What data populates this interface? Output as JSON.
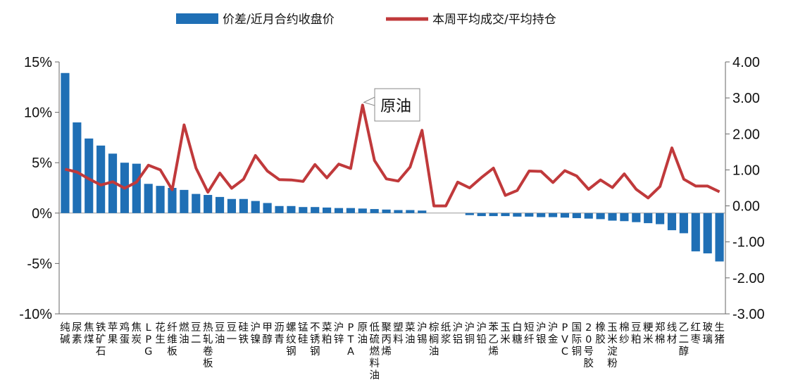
{
  "chart_data": {
    "type": "bar+line",
    "title": "",
    "colors": {
      "bar": "#1f6fb5",
      "line": "#c0393b"
    },
    "categories": [
      "纯碱",
      "尿素",
      "焦煤",
      "铁矿石",
      "苹果",
      "鸡蛋",
      "焦炭",
      "LPG",
      "花生",
      "纤维板",
      "燃油",
      "豆二",
      "热轧卷板",
      "豆油",
      "豆一",
      "硅铁",
      "沪镍",
      "甲醇",
      "沥青",
      "螺纹钢",
      "锰硅",
      "不锈钢",
      "菜粕",
      "沪锌",
      "PTA",
      "原油",
      "低硫燃料油",
      "聚丙烯",
      "塑料",
      "菜油",
      "沪锡",
      "棕榈油",
      "纸浆",
      "沪铝",
      "沪铜",
      "沪铅",
      "苯乙烯",
      "玉米",
      "白糖",
      "短纤",
      "沪银",
      "沪金",
      "PVC",
      "国际铜",
      "20号胶",
      "橡胶",
      "玉米淀粉",
      "棉纱",
      "豆粕",
      "粳米",
      "郑棉",
      "线材",
      "乙二醇",
      "红枣",
      "玻璃",
      "生猪"
    ],
    "series": [
      {
        "name": "价差/近月合约收盘价",
        "axis": "left",
        "unit": "%",
        "values": [
          13.9,
          9.0,
          7.4,
          6.7,
          5.9,
          5.0,
          4.9,
          2.9,
          2.7,
          2.5,
          2.3,
          1.9,
          1.8,
          1.6,
          1.4,
          1.4,
          1.2,
          1.0,
          0.7,
          0.7,
          0.6,
          0.6,
          0.55,
          0.5,
          0.5,
          0.45,
          0.4,
          0.35,
          0.3,
          0.3,
          0.25,
          null,
          null,
          null,
          -0.2,
          -0.3,
          -0.3,
          -0.3,
          -0.35,
          -0.35,
          -0.4,
          -0.4,
          -0.45,
          -0.5,
          -0.55,
          -0.6,
          -0.75,
          -0.8,
          -0.9,
          -1.0,
          -1.1,
          -1.7,
          -2.0,
          -3.8,
          -4.0,
          -4.8
        ]
      },
      {
        "name": "本周平均成交/平均持仓",
        "axis": "right",
        "values": [
          1.02,
          0.94,
          0.75,
          0.58,
          0.67,
          0.49,
          0.66,
          1.13,
          1.0,
          0.45,
          2.25,
          1.05,
          0.38,
          0.91,
          0.49,
          0.74,
          1.4,
          0.97,
          0.73,
          0.72,
          0.68,
          1.15,
          0.78,
          1.16,
          1.04,
          2.8,
          1.26,
          0.75,
          0.69,
          1.08,
          2.1,
          0.0,
          0.0,
          0.66,
          0.5,
          0.79,
          1.05,
          0.29,
          0.43,
          0.97,
          0.96,
          0.65,
          0.98,
          0.83,
          0.46,
          0.72,
          0.51,
          0.89,
          0.46,
          0.22,
          0.54,
          1.61,
          0.74,
          0.55,
          0.55,
          0.39
        ]
      }
    ],
    "y_left": {
      "min": -10,
      "max": 15,
      "ticks": [
        "15%",
        "10%",
        "5%",
        "0%",
        "-5%",
        "-10%"
      ],
      "values": [
        15,
        10,
        5,
        0,
        -5,
        -10
      ]
    },
    "y_right": {
      "min": -3,
      "max": 4,
      "ticks": [
        "4.00",
        "3.00",
        "2.00",
        "1.00",
        "0.00",
        "-1.00",
        "-2.00",
        "-3.00"
      ],
      "values": [
        4,
        3,
        2,
        1,
        0,
        -1,
        -2,
        -3
      ]
    },
    "legend_position": "top",
    "grid": false,
    "annotation": {
      "text": "原油",
      "category_index": 25
    }
  }
}
